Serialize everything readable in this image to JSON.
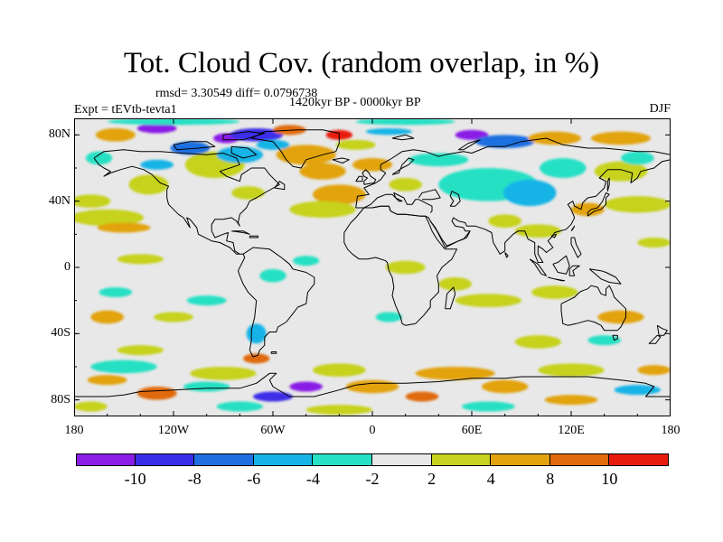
{
  "title": "Tot. Cloud Cov. (random overlap, in %)",
  "stats_line": "rmsd= 3.30549 diff= 0.0796738",
  "period": "1420kyr BP - 0000kyr BP",
  "experiment": "Expt = tEVtb-tevta1",
  "season": "DJF",
  "map": {
    "projection": "cylindrical equidistant",
    "lat_labels": [
      "80N",
      "40N",
      "0",
      "40S",
      "80S"
    ],
    "lat_values": [
      80,
      40,
      0,
      -40,
      -80
    ],
    "lon_labels": [
      "180",
      "120W",
      "60W",
      "0",
      "60E",
      "120E",
      "180"
    ],
    "lon_values": [
      -180,
      -120,
      -60,
      0,
      60,
      120,
      180
    ],
    "lat_range": [
      -90,
      90
    ],
    "lon_range": [
      -180,
      180
    ],
    "background_color": "#e8e8e8",
    "coastline_color": "#000000"
  },
  "colorbar": {
    "labels": [
      "-10",
      "-8",
      "-6",
      "-4",
      "-2",
      "2",
      "4",
      "8",
      "10"
    ],
    "colors": [
      "#8a1ee6",
      "#3c2ee8",
      "#1f6fe0",
      "#16b4e6",
      "#28e0c4",
      "#e8e8e8",
      "#c6d21e",
      "#e2a30e",
      "#e06a0c",
      "#e81c0c"
    ]
  }
}
